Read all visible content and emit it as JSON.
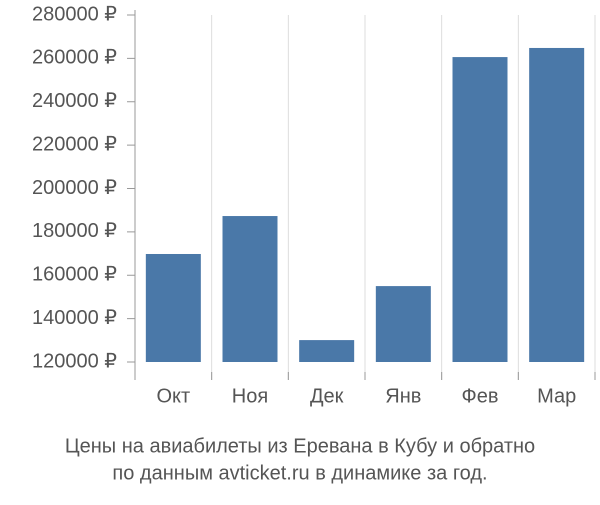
{
  "chart_data": {
    "type": "bar",
    "title": [
      "Цены на авиабилеты из Еревана в Кубу и обратно",
      "по данным avticket.ru в динамике за год."
    ],
    "categories": [
      "Окт",
      "Ноя",
      "Дек",
      "Янв",
      "Фев",
      "Мар"
    ],
    "values": [
      169800,
      187300,
      130100,
      155000,
      260600,
      264800
    ],
    "color": "#4a78a8",
    "ylim": [
      120000,
      280000
    ],
    "yticks": [
      {
        "value": 120000,
        "label": "120000 ₽"
      },
      {
        "value": 140000,
        "label": "140000 ₽"
      },
      {
        "value": 160000,
        "label": "160000 ₽"
      },
      {
        "value": 180000,
        "label": "180000 ₽"
      },
      {
        "value": 200000,
        "label": "200000 ₽"
      },
      {
        "value": 220000,
        "label": "220000 ₽"
      },
      {
        "value": 240000,
        "label": "240000 ₽"
      },
      {
        "value": 260000,
        "label": "260000 ₽"
      },
      {
        "value": 280000,
        "label": "280000 ₽"
      }
    ],
    "grid": true
  }
}
